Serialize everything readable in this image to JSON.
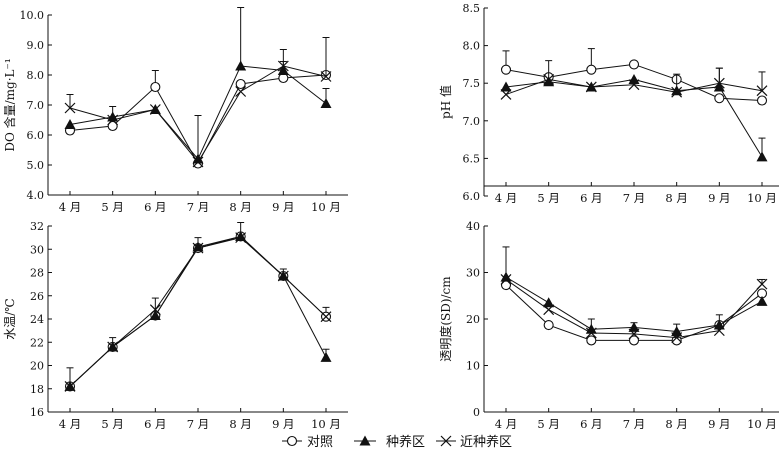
{
  "legend": {
    "items": [
      {
        "label": "对照",
        "marker": "circle"
      },
      {
        "label": "种养区",
        "marker": "triangle"
      },
      {
        "label": "近种养区",
        "marker": "cross"
      }
    ]
  },
  "chart_data": [
    {
      "id": "do",
      "type": "line",
      "ylabel": "DO 含量/mg·L⁻¹",
      "ylim": [
        4.0,
        10.0
      ],
      "yticks": [
        "4.0",
        "5.0",
        "6.0",
        "7.0",
        "8.0",
        "9.0",
        "10.0"
      ],
      "categories": [
        "4 月",
        "5 月",
        "6 月",
        "7 月",
        "8 月",
        "9 月",
        "10 月"
      ],
      "x_axis_position": "bottom",
      "series": [
        {
          "name": "对照",
          "marker": "circle",
          "values": [
            6.15,
            6.3,
            7.6,
            5.05,
            7.7,
            7.9,
            8.0
          ],
          "error_up": [
            0,
            0,
            0.55,
            0,
            0,
            0,
            0
          ]
        },
        {
          "name": "种养区",
          "marker": "triangle",
          "values": [
            6.35,
            6.6,
            6.85,
            5.2,
            8.3,
            8.15,
            7.05
          ],
          "error_up": [
            0,
            0.35,
            0,
            1.45,
            1.95,
            0.3,
            0.5
          ]
        },
        {
          "name": "近种养区",
          "marker": "cross",
          "values": [
            6.9,
            6.5,
            6.85,
            5.1,
            7.45,
            8.3,
            7.95
          ],
          "error_up": [
            0.45,
            0,
            0,
            0,
            0,
            0.55,
            1.3
          ]
        }
      ]
    },
    {
      "id": "ph",
      "type": "line",
      "ylabel": "pH 值",
      "ylim": [
        6.0,
        8.5
      ],
      "yticks": [
        "6.0",
        "6.5",
        "7.0",
        "7.5",
        "8.0",
        "8.5"
      ],
      "categories": [
        "4 月",
        "5 月",
        "6 月",
        "7 月",
        "8 月",
        "9 月",
        "10 月"
      ],
      "x_axis_position": "between",
      "series": [
        {
          "name": "对照",
          "marker": "circle",
          "values": [
            7.68,
            7.58,
            7.68,
            7.75,
            7.55,
            7.3,
            7.27
          ],
          "error_up": [
            0.25,
            0,
            0.28,
            0,
            0,
            0,
            0
          ]
        },
        {
          "name": "种养区",
          "marker": "triangle",
          "values": [
            7.45,
            7.52,
            7.45,
            7.55,
            7.4,
            7.45,
            6.52
          ],
          "error_up": [
            0,
            0.28,
            0,
            0,
            0.22,
            0.25,
            0.25
          ]
        },
        {
          "name": "近种养区",
          "marker": "cross",
          "values": [
            7.35,
            7.55,
            7.45,
            7.48,
            7.38,
            7.5,
            7.4
          ],
          "error_up": [
            0,
            0,
            0,
            0,
            0,
            0.2,
            0.25
          ]
        }
      ]
    },
    {
      "id": "temp",
      "type": "line",
      "ylabel": "水温/℃",
      "ylim": [
        16,
        32
      ],
      "yticks": [
        "16",
        "18",
        "20",
        "22",
        "24",
        "26",
        "28",
        "30",
        "32"
      ],
      "categories": [
        "4 月",
        "5 月",
        "6 月",
        "7 月",
        "8 月",
        "9 月",
        "10 月"
      ],
      "x_axis_position": "bottom",
      "series": [
        {
          "name": "对照",
          "marker": "circle",
          "values": [
            18.2,
            21.6,
            24.3,
            30.1,
            31.1,
            27.7,
            24.2
          ],
          "error_up": [
            0,
            0,
            0,
            0,
            0,
            0,
            0.8
          ]
        },
        {
          "name": "种养区",
          "marker": "triangle",
          "values": [
            18.2,
            21.6,
            24.3,
            30.2,
            31.1,
            27.7,
            20.7
          ],
          "error_up": [
            1.6,
            0.8,
            1.5,
            0.8,
            1.2,
            0.6,
            0.7
          ]
        },
        {
          "name": "近种养区",
          "marker": "cross",
          "values": [
            18.2,
            21.6,
            24.8,
            30.1,
            31.0,
            27.7,
            24.2
          ],
          "error_up": [
            0,
            0,
            0,
            0,
            0,
            0,
            0
          ]
        }
      ]
    },
    {
      "id": "sd",
      "type": "line",
      "ylabel": "透明度(SD)/cm",
      "ylim": [
        0,
        40
      ],
      "yticks": [
        "0",
        "10",
        "20",
        "30",
        "40"
      ],
      "categories": [
        "4 月",
        "5 月",
        "6 月",
        "7 月",
        "8 月",
        "9 月",
        "10 月"
      ],
      "x_axis_position": "bottom",
      "series": [
        {
          "name": "对照",
          "marker": "circle",
          "values": [
            27.3,
            18.7,
            15.4,
            15.4,
            15.4,
            18.7,
            25.5
          ],
          "error_up": [
            0,
            0,
            0,
            0,
            0,
            0,
            0
          ]
        },
        {
          "name": "种养区",
          "marker": "triangle",
          "values": [
            29.0,
            23.5,
            17.8,
            18.2,
            17.3,
            18.7,
            23.8
          ],
          "error_up": [
            6.5,
            0,
            2.2,
            1.0,
            1.6,
            2.2,
            0
          ]
        },
        {
          "name": "近种养区",
          "marker": "cross",
          "values": [
            28.5,
            22.0,
            17.0,
            16.8,
            16.0,
            17.5,
            27.5
          ],
          "error_up": [
            0,
            0,
            0,
            0,
            0,
            0,
            1.0
          ]
        }
      ]
    }
  ]
}
